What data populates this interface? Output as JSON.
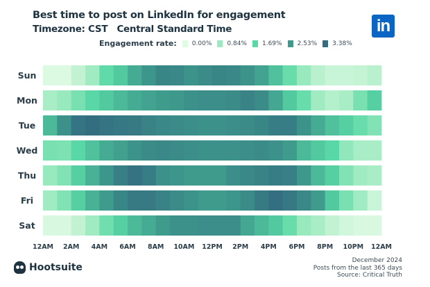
{
  "chart_data": {
    "type": "heatmap",
    "title": "Best time to post on LinkedIn for engagement",
    "subtitle": "Timezone: CST   Central Standard Time",
    "legend": {
      "label": "Engagement rate:",
      "stops": [
        {
          "value": 0.0,
          "label": "0.00%",
          "color": "#e0fbe3"
        },
        {
          "value": 0.84,
          "label": "0.84%",
          "color": "#9eeac0"
        },
        {
          "value": 1.69,
          "label": "1.69%",
          "color": "#5ad8a6"
        },
        {
          "value": 2.53,
          "label": "2.53%",
          "color": "#3e9a8c"
        },
        {
          "value": 3.38,
          "label": "3.38%",
          "color": "#336b80"
        }
      ],
      "placement": "top"
    },
    "rows": [
      "Sun",
      "Mon",
      "Tue",
      "Wed",
      "Thu",
      "Fri",
      "Sat"
    ],
    "x_tick_labels": [
      "12AM",
      "2AM",
      "4AM",
      "6AM",
      "8AM",
      "10AM",
      "12PM",
      "2PM",
      "4PM",
      "6PM",
      "8PM",
      "10PM",
      "12AM"
    ],
    "hours": 24,
    "unit": "%",
    "values": [
      [
        0.05,
        0.05,
        0.4,
        0.8,
        1.6,
        1.9,
        2.3,
        2.6,
        2.9,
        2.85,
        2.65,
        2.8,
        2.9,
        2.85,
        2.65,
        2.4,
        2.0,
        1.5,
        0.9,
        0.5,
        0.3,
        0.3,
        0.35,
        0.5
      ],
      [
        0.7,
        0.9,
        1.3,
        1.7,
        1.9,
        2.1,
        2.3,
        2.4,
        2.5,
        2.55,
        2.7,
        2.75,
        2.75,
        2.8,
        2.95,
        2.8,
        2.35,
        1.9,
        1.5,
        0.8,
        0.55,
        0.7,
        1.3,
        1.8
      ],
      [
        2.1,
        2.7,
        3.2,
        3.35,
        3.2,
        3.15,
        3.1,
        2.95,
        2.85,
        2.8,
        2.75,
        2.7,
        2.7,
        2.75,
        2.8,
        2.9,
        3.05,
        3.05,
        2.65,
        2.3,
        2.0,
        1.8,
        1.5,
        1.2
      ],
      [
        1.3,
        1.25,
        1.7,
        2.0,
        2.3,
        2.45,
        2.65,
        2.8,
        2.85,
        2.8,
        2.75,
        2.7,
        2.7,
        2.7,
        2.75,
        2.8,
        2.7,
        2.5,
        2.1,
        1.9,
        1.7,
        1.0,
        0.7,
        0.7
      ],
      [
        0.9,
        1.2,
        1.8,
        2.2,
        2.6,
        3.0,
        3.25,
        3.05,
        2.7,
        2.6,
        2.5,
        2.5,
        2.5,
        2.75,
        2.85,
        2.95,
        3.05,
        3.0,
        2.55,
        2.1,
        1.8,
        1.2,
        0.8,
        0.7
      ],
      [
        0.8,
        1.2,
        1.8,
        2.2,
        2.5,
        2.9,
        3.1,
        3.1,
        2.95,
        2.8,
        2.65,
        2.5,
        2.5,
        2.6,
        2.8,
        3.1,
        3.3,
        3.15,
        2.85,
        2.5,
        1.9,
        1.3,
        0.8,
        0.3
      ],
      [
        0.1,
        0.1,
        0.4,
        0.8,
        1.4,
        1.8,
        2.1,
        2.3,
        2.5,
        2.7,
        2.7,
        2.75,
        2.75,
        2.75,
        2.35,
        2.1,
        1.9,
        1.5,
        0.9,
        0.7,
        0.4,
        0.2,
        0.1,
        0.1
      ]
    ]
  },
  "brand": {
    "name": "Hootsuite",
    "linkedin_logo": "in"
  },
  "footer": [
    "December 2024",
    "Posts from the last 365 days",
    "Source: Critical Truth"
  ]
}
